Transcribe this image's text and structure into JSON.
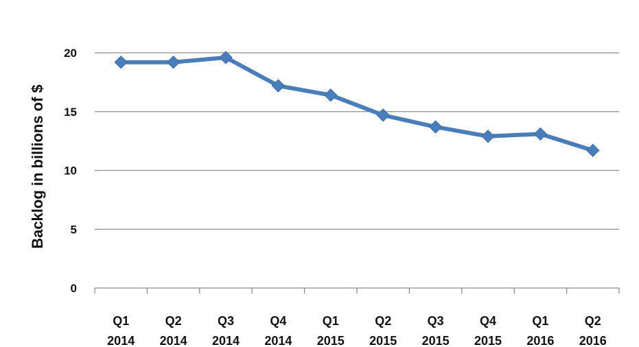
{
  "chart_data": {
    "type": "line",
    "title": "",
    "xlabel": "",
    "ylabel": "Backlog in billions of $",
    "ylim": [
      0,
      25
    ],
    "yticks": [
      "0",
      "5",
      "10",
      "15",
      "20",
      "25"
    ],
    "grid": true,
    "legend": "none",
    "categories": [
      [
        "Q1",
        "2014"
      ],
      [
        "Q2",
        "2014"
      ],
      [
        "Q3",
        "2014"
      ],
      [
        "Q4",
        "2014"
      ],
      [
        "Q1",
        "2015"
      ],
      [
        "Q2",
        "2015"
      ],
      [
        "Q3",
        "2015"
      ],
      [
        "Q4",
        "2015"
      ],
      [
        "Q1",
        "2016"
      ],
      [
        "Q2",
        "2016"
      ]
    ],
    "series": [
      {
        "values": [
          19.2,
          19.2,
          19.6,
          17.2,
          16.4,
          14.7,
          13.7,
          12.9,
          13.1,
          11.7
        ],
        "color": "#4a7ebb",
        "marker": "diamond"
      }
    ]
  }
}
